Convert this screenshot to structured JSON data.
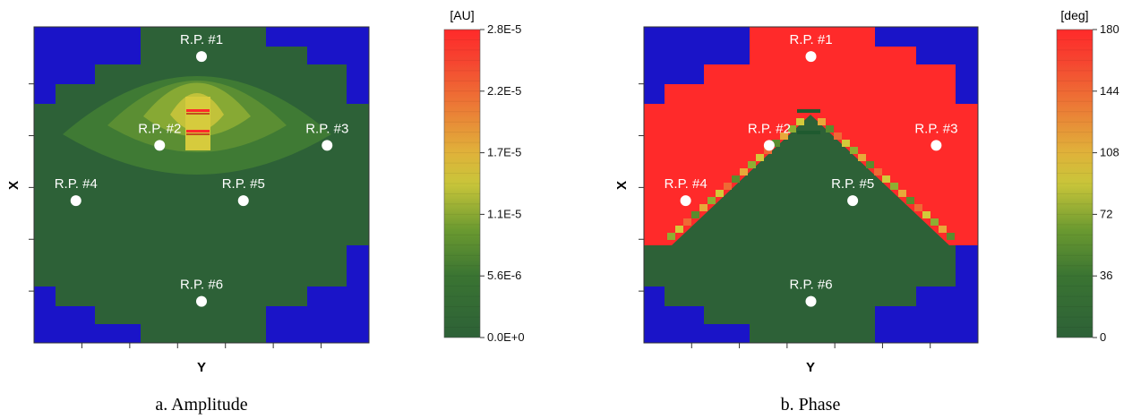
{
  "chart_data": [
    {
      "type": "heatmap",
      "panel": "a",
      "caption": "a. Amplitude",
      "xlabel": "Y",
      "ylabel": "X",
      "colorbar": {
        "unit": "[AU]",
        "ticks": [
          "0.0E+0",
          "5.6E-6",
          "1.1E-5",
          "1.7E-5",
          "2.2E-5",
          "2.8E-5"
        ],
        "range": [
          0,
          2.8e-05
        ]
      },
      "points": [
        {
          "label": "R.P. #1",
          "x": 0,
          "y": 6.5
        },
        {
          "label": "R.P. #2",
          "x": -2,
          "y": 2
        },
        {
          "label": "R.P. #3",
          "x": 6,
          "y": 2
        },
        {
          "label": "R.P. #4",
          "x": -6,
          "y": -0.8
        },
        {
          "label": "R.P. #5",
          "x": 2,
          "y": -0.8
        },
        {
          "label": "R.P. #6",
          "x": 0,
          "y": -5.9
        }
      ]
    },
    {
      "type": "heatmap",
      "panel": "b",
      "caption": "b. Phase",
      "xlabel": "Y",
      "ylabel": "X",
      "colorbar": {
        "unit": "[deg]",
        "ticks": [
          "0",
          "36",
          "72",
          "108",
          "144",
          "180"
        ],
        "range": [
          0,
          180
        ]
      },
      "points": [
        {
          "label": "R.P. #1",
          "x": 0,
          "y": 6.5
        },
        {
          "label": "R.P. #2",
          "x": -2,
          "y": 2
        },
        {
          "label": "R.P. #3",
          "x": 6,
          "y": 2
        },
        {
          "label": "R.P. #4",
          "x": -6,
          "y": -0.8
        },
        {
          "label": "R.P. #5",
          "x": 2,
          "y": -0.8
        },
        {
          "label": "R.P. #6",
          "x": 0,
          "y": -5.9
        }
      ]
    }
  ],
  "colors": {
    "outside": "#1a14c8",
    "scale": [
      "#2d6137",
      "#3a7432",
      "#5a8c2e",
      "#8fae32",
      "#d3c93a",
      "#e8a83a",
      "#ee6a34",
      "#ff2a2a"
    ]
  }
}
